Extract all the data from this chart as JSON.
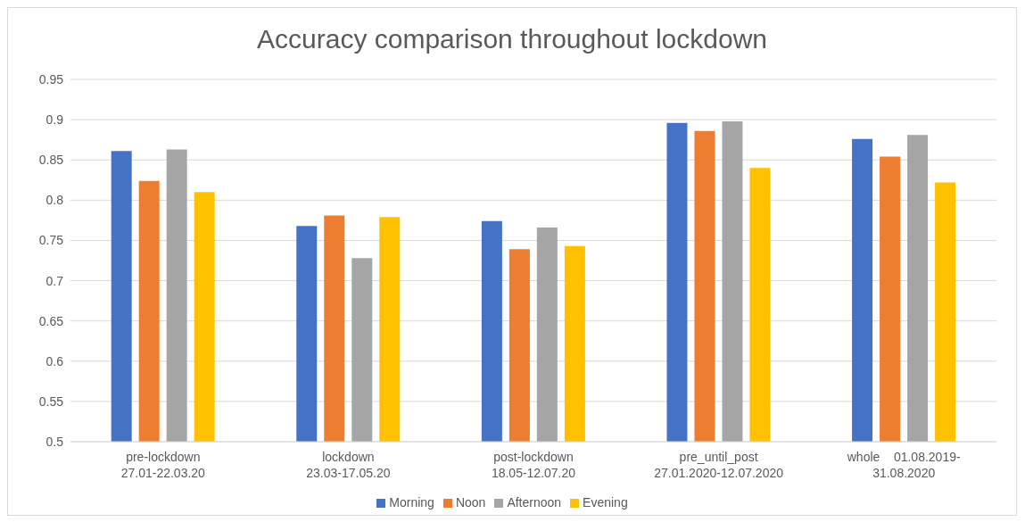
{
  "chart_data": {
    "type": "bar",
    "title": "Accuracy comparison throughout lockdown",
    "categories": [
      "pre-lockdown\n27.01-22.03.20",
      "lockdown\n23.03-17.05.20",
      "post-lockdown\n18.05-12.07.20",
      "pre_until_post\n27.01.2020-12.07.2020",
      "whole    01.08.2019-\n31.08.2020"
    ],
    "series": [
      {
        "name": "Morning",
        "color": "#4472c4",
        "values": [
          0.861,
          0.768,
          0.774,
          0.896,
          0.876
        ]
      },
      {
        "name": "Noon",
        "color": "#ed7d31",
        "values": [
          0.824,
          0.781,
          0.739,
          0.886,
          0.854
        ]
      },
      {
        "name": "Afternoon",
        "color": "#a5a5a5",
        "values": [
          0.863,
          0.728,
          0.766,
          0.898,
          0.881
        ]
      },
      {
        "name": "Evening",
        "color": "#ffc000",
        "values": [
          0.81,
          0.779,
          0.743,
          0.84,
          0.822
        ]
      }
    ],
    "ylim": [
      0.5,
      0.95
    ],
    "yticks": [
      0.5,
      0.55,
      0.6,
      0.65,
      0.7,
      0.75,
      0.8,
      0.85,
      0.9,
      0.95
    ],
    "grid": "y",
    "legend": "bottom"
  }
}
